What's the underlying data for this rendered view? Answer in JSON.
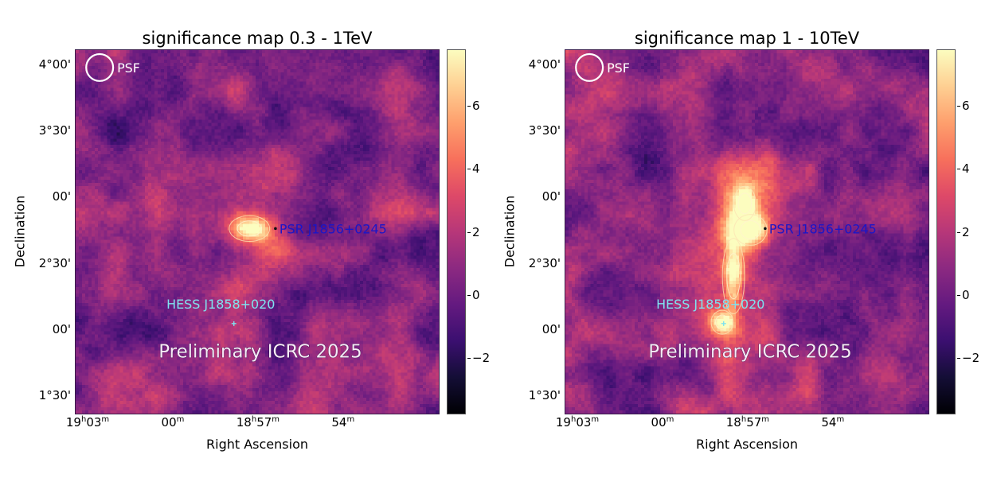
{
  "figure": {
    "background": "#ffffff"
  },
  "chart_data": [
    {
      "type": "heatmap",
      "title": "significance map 0.3 - 1TeV",
      "xlabel": "Right Ascension",
      "ylabel": "Declination",
      "colormap": "magma",
      "colorbar": {
        "range": [
          -3.8,
          7.8
        ],
        "ticks": [
          6,
          4,
          2,
          0,
          -2
        ],
        "tick_labels": [
          "6",
          "4",
          "2",
          "0",
          "−2"
        ]
      },
      "x_axis": {
        "unit": "RA (minutes of time)",
        "range_min": [
          1143.45,
          1130.6
        ],
        "ticks": [
          {
            "value_min": 1143.0,
            "label_main": "19",
            "label_h": "h",
            "label_min": "03",
            "label_m": "m"
          },
          {
            "value_min": 1140.0,
            "label_main": "",
            "label_h": "",
            "label_min": "00",
            "label_m": "m"
          },
          {
            "value_min": 1137.0,
            "label_main": "18",
            "label_h": "h",
            "label_min": "57",
            "label_m": "m"
          },
          {
            "value_min": 1134.0,
            "label_main": "",
            "label_h": "",
            "label_min": "54",
            "label_m": "m"
          }
        ]
      },
      "y_axis": {
        "unit": "degrees",
        "range": [
          1.358,
          4.112
        ],
        "ticks": [
          {
            "value": 4.0,
            "label": "4°00'"
          },
          {
            "value": 3.5,
            "label": "3°30'"
          },
          {
            "value": 3.0,
            "label": "00'"
          },
          {
            "value": 2.5,
            "label": "2°30'"
          },
          {
            "value": 2.0,
            "label": "00'"
          },
          {
            "value": 1.5,
            "label": "1°30'"
          }
        ]
      },
      "psf": {
        "label": "PSF",
        "ra_min": 1142.6,
        "dec": 3.98
      },
      "sources": [
        {
          "name": "PSR J1856+0245",
          "ra_min": 1136.38,
          "dec": 2.76,
          "color": "#1a16c8",
          "marker": "dot"
        },
        {
          "name": "HESS J1858+020",
          "ra_min": 1137.85,
          "dec": 2.04,
          "color": "#7fe3f0",
          "marker": "cross"
        }
      ],
      "emission": [
        {
          "ra_min": 1137.3,
          "dec": 2.76,
          "peak": 7.4,
          "sigma_ra": 0.55,
          "sigma_dec": 0.075,
          "label": "bright core near PSR"
        }
      ],
      "watermark": "Preliminary ICRC 2025"
    },
    {
      "type": "heatmap",
      "title": "significance map 1 - 10TeV",
      "xlabel": "Right Ascension",
      "ylabel": "Declination",
      "colormap": "magma",
      "colorbar": {
        "range": [
          -3.8,
          7.8
        ],
        "ticks": [
          6,
          4,
          2,
          0,
          -2
        ],
        "tick_labels": [
          "6",
          "4",
          "2",
          "0",
          "−2"
        ]
      },
      "x_axis": {
        "unit": "RA (minutes of time)",
        "range_min": [
          1143.45,
          1130.6
        ],
        "ticks": [
          {
            "value_min": 1143.0,
            "label_main": "19",
            "label_h": "h",
            "label_min": "03",
            "label_m": "m"
          },
          {
            "value_min": 1140.0,
            "label_main": "",
            "label_h": "",
            "label_min": "00",
            "label_m": "m"
          },
          {
            "value_min": 1137.0,
            "label_main": "18",
            "label_h": "h",
            "label_min": "57",
            "label_m": "m"
          },
          {
            "value_min": 1134.0,
            "label_main": "",
            "label_h": "",
            "label_min": "54",
            "label_m": "m"
          }
        ]
      },
      "y_axis": {
        "unit": "degrees",
        "range": [
          1.358,
          4.112
        ],
        "ticks": [
          {
            "value": 4.0,
            "label": "4°00'"
          },
          {
            "value": 3.5,
            "label": "3°30'"
          },
          {
            "value": 3.0,
            "label": "00'"
          },
          {
            "value": 2.5,
            "label": "2°30'"
          },
          {
            "value": 2.0,
            "label": "00'"
          },
          {
            "value": 1.5,
            "label": "1°30'"
          }
        ]
      },
      "psf": {
        "label": "PSF",
        "ra_min": 1142.6,
        "dec": 3.98
      },
      "sources": [
        {
          "name": "PSR J1856+0245",
          "ra_min": 1136.38,
          "dec": 2.76,
          "color": "#1a16c8",
          "marker": "dot"
        },
        {
          "name": "HESS J1858+020",
          "ra_min": 1137.85,
          "dec": 2.04,
          "color": "#7fe3f0",
          "marker": "cross"
        }
      ],
      "emission": [
        {
          "ra_min": 1136.9,
          "dec": 2.75,
          "peak": 7.6,
          "sigma_ra": 0.45,
          "sigma_dec": 0.09,
          "label": "core near PSR"
        },
        {
          "ra_min": 1137.1,
          "dec": 2.95,
          "peak": 5.5,
          "sigma_ra": 0.25,
          "sigma_dec": 0.1,
          "label": "northern extension"
        },
        {
          "ra_min": 1137.5,
          "dec": 2.4,
          "peak": 5.2,
          "sigma_ra": 0.22,
          "sigma_dec": 0.22,
          "label": "bridge"
        },
        {
          "ra_min": 1137.9,
          "dec": 2.05,
          "peak": 7.4,
          "sigma_ra": 0.3,
          "sigma_dec": 0.07,
          "label": "HESS J1858+020 peak"
        }
      ],
      "watermark": "Preliminary ICRC 2025"
    }
  ]
}
